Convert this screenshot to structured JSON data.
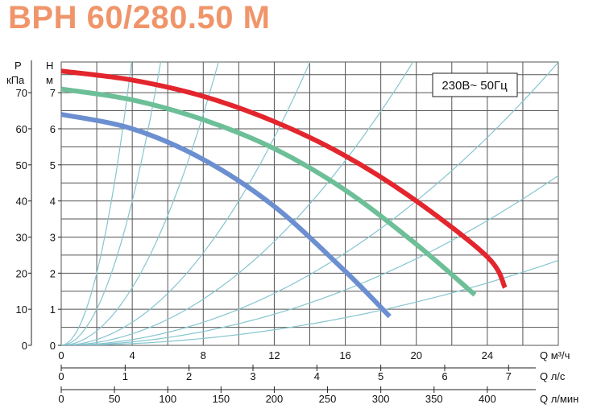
{
  "title": "BPH 60/280.50 M",
  "chart_data": {
    "type": "line",
    "title": "BPH 60/280.50 M",
    "power_label": "230В~ 50Гц",
    "ylabel_left": [
      "P",
      "кПа"
    ],
    "ylabel_right": [
      "H",
      "м"
    ],
    "ylim": [
      0,
      7.85
    ],
    "xlim": [
      0,
      28
    ],
    "pressure_ticks": [
      "0",
      "10",
      "20",
      "30",
      "40",
      "50",
      "60",
      "70"
    ],
    "pressure_values": [
      0,
      10,
      20,
      30,
      40,
      50,
      60,
      70
    ],
    "head_ticks": [
      "0",
      "1",
      "2",
      "3",
      "4",
      "5",
      "6",
      "7"
    ],
    "head_values": [
      0,
      1,
      2,
      3,
      4,
      5,
      6,
      7
    ],
    "x_axes": [
      {
        "label": "Q м³/ч",
        "ticks": [
          "0",
          "4",
          "8",
          "12",
          "16",
          "20",
          "24"
        ],
        "values": [
          0,
          4,
          8,
          12,
          16,
          20,
          24
        ]
      },
      {
        "label": "Q л/с",
        "ticks": [
          "0",
          "1",
          "2",
          "3",
          "4",
          "5",
          "6",
          "7"
        ],
        "values": [
          0,
          1,
          2,
          3,
          4,
          5,
          6,
          7
        ]
      },
      {
        "label": "Q л/мин",
        "ticks": [
          "0",
          "50",
          "100",
          "150",
          "200",
          "250",
          "300",
          "350",
          "400"
        ],
        "values": [
          0,
          50,
          100,
          150,
          200,
          250,
          300,
          350,
          400
        ]
      }
    ],
    "grid": true,
    "series": [
      {
        "color": "#e3262d",
        "x": [
          0,
          4,
          8,
          12,
          16,
          20,
          24,
          25
        ],
        "y": [
          7.6,
          7.35,
          6.9,
          6.2,
          5.25,
          4.0,
          2.45,
          1.6
        ]
      },
      {
        "color": "#6dbf98",
        "x": [
          0,
          4,
          8,
          12,
          16,
          20,
          23.3
        ],
        "y": [
          7.1,
          6.8,
          6.25,
          5.45,
          4.3,
          2.8,
          1.4
        ]
      },
      {
        "color": "#6b8fd0",
        "x": [
          0,
          4,
          8,
          12,
          16,
          18.5
        ],
        "y": [
          6.4,
          6.0,
          5.15,
          3.85,
          2.05,
          0.8
        ]
      }
    ],
    "system_curve_coefficients": [
      0.5,
      0.25,
      0.1,
      0.04,
      0.02,
      0.01,
      0.006,
      0.003
    ],
    "system_curve_color": "#86c5d0"
  }
}
